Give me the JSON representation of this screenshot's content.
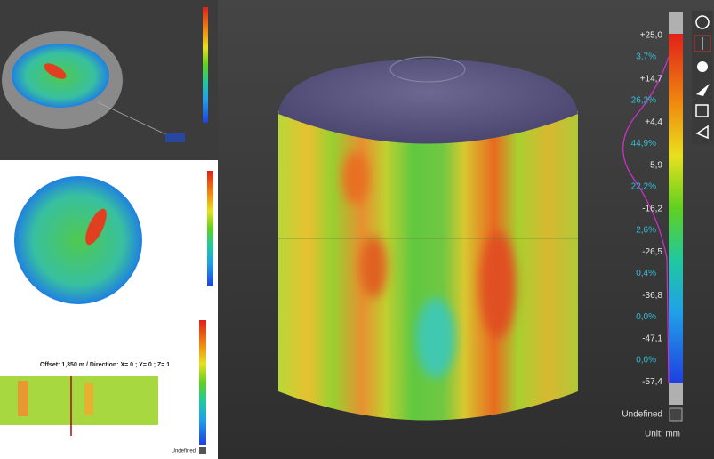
{
  "main_scale": {
    "labels": [
      "+25,0",
      "+14,7",
      "+4,4",
      "-5,9",
      "-16,2",
      "-26,5",
      "-36,8",
      "-47,1",
      "-57,4"
    ],
    "percentages": [
      "3,7%",
      "26,2%",
      "44,9%",
      "22,2%",
      "2,6%",
      "0,4%",
      "0,0%",
      "0,0%"
    ],
    "undefined_label": "Undefined",
    "unit": "Unit: mm"
  },
  "section_panel": {
    "caption": "Offset: 1,350 m / Direction: X= 0 ; Y= 0 ; Z= 1",
    "undefined_label": "Undefined"
  }
}
